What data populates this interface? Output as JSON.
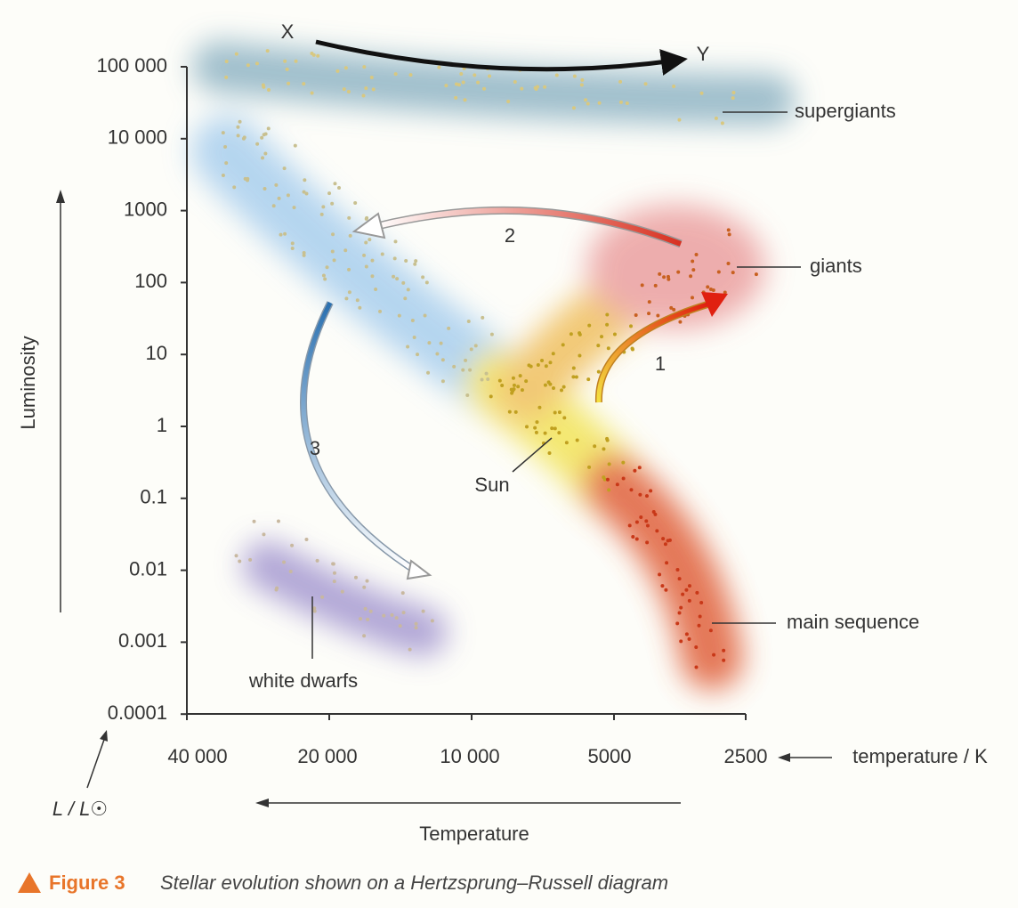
{
  "y_axis": {
    "label": "Luminosity",
    "unit": "L / L☉",
    "ticks": [
      "100 000",
      "10 000",
      "1000",
      "100",
      "10",
      "1",
      "0.1",
      "0.01",
      "0.001",
      "0.0001"
    ]
  },
  "x_axis": {
    "label": "Temperature",
    "unit": "temperature / K",
    "ticks": [
      "40 000",
      "20 000",
      "10 000",
      "5000",
      "2500"
    ]
  },
  "regions": {
    "supergiants": "supergiants",
    "giants": "giants",
    "main_sequence": "main sequence",
    "white_dwarfs": "white dwarfs",
    "sun": "Sun"
  },
  "arrows": {
    "start": "X",
    "end": "Y",
    "path_1": "1",
    "path_2": "2",
    "path_3": "3"
  },
  "caption": {
    "figure": "Figure 3",
    "text": "Stellar evolution shown on a Hertzsprung–Russell diagram"
  }
}
